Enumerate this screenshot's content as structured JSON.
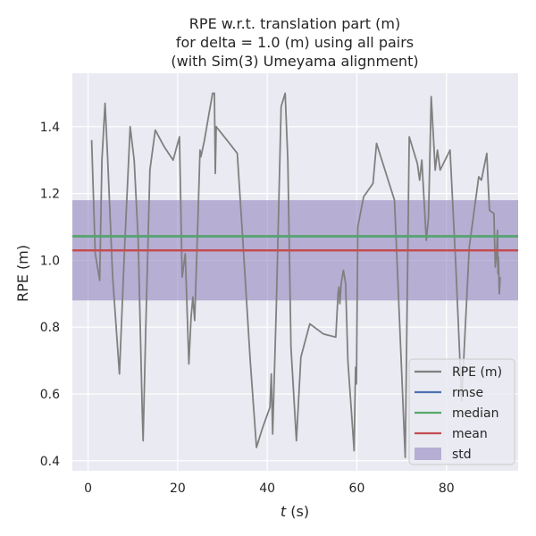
{
  "chart_data": {
    "type": "line",
    "title_lines": [
      "RPE w.r.t. translation part (m)",
      "for delta = 1.0 (m) using all pairs",
      "(with Sim(3) Umeyama alignment)"
    ],
    "xlabel_italic": "t",
    "xlabel_rest": " (s)",
    "ylabel": "RPE (m)",
    "xlim": [
      -3.5,
      96
    ],
    "ylim": [
      0.37,
      1.56
    ],
    "xticks": [
      0,
      20,
      40,
      60,
      80
    ],
    "yticks": [
      0.4,
      0.6,
      0.8,
      1.0,
      1.2,
      1.4
    ],
    "xtick_labels": [
      "0",
      "20",
      "40",
      "60",
      "80"
    ],
    "ytick_labels": [
      "0.4",
      "0.6",
      "0.8",
      "1.0",
      "1.2",
      "1.4"
    ],
    "grid": true,
    "legend_position": "lower-right",
    "series": [
      {
        "name": "RPE (m)",
        "color": "#808080",
        "x": [
          0.8,
          1.6,
          2.1,
          2.6,
          3.1,
          3.8,
          4.4,
          5.5,
          7.0,
          8.1,
          9.4,
          10.3,
          11.2,
          12.1,
          12.3,
          12.9,
          13.8,
          15.0,
          17.0,
          19.0,
          20.4,
          21.0,
          21.7,
          22.5,
          23.0,
          23.4,
          23.8,
          24.5,
          25.0,
          25.2,
          26.0,
          27.0,
          27.8,
          28.2,
          28.4,
          28.6,
          31.0,
          33.3,
          34.5,
          36.2,
          37.6,
          39.0,
          40.6,
          40.9,
          41.2,
          42.0,
          43.1,
          44.0,
          44.6,
          45.3,
          46.5,
          47.5,
          49.5,
          52.5,
          55.3,
          55.8,
          56.0,
          56.2,
          56.5,
          57.0,
          57.5,
          58.0,
          59.4,
          59.7,
          59.9,
          60.2,
          61.5,
          63.6,
          64.4,
          68.4,
          70.8,
          71.7,
          73.5,
          74.0,
          74.5,
          75.5,
          76.0,
          76.6,
          77.5,
          78.0,
          78.6,
          80.8,
          82.1,
          83.4,
          85.1,
          87.2,
          87.8,
          89.0,
          89.6,
          90.6,
          90.9,
          91.2,
          91.4,
          91.5,
          91.6,
          91.8,
          92.0
        ],
        "y": [
          1.36,
          1.02,
          0.98,
          0.94,
          1.3,
          1.47,
          1.3,
          0.95,
          0.66,
          1.02,
          1.4,
          1.3,
          1.06,
          0.55,
          0.46,
          0.8,
          1.27,
          1.39,
          1.34,
          1.3,
          1.37,
          0.95,
          1.02,
          0.69,
          0.83,
          0.89,
          0.82,
          1.11,
          1.33,
          1.31,
          1.36,
          1.44,
          1.5,
          1.5,
          1.26,
          1.4,
          1.36,
          1.32,
          1.07,
          0.7,
          0.44,
          0.5,
          0.56,
          0.66,
          0.48,
          0.85,
          1.46,
          1.5,
          1.3,
          0.74,
          0.46,
          0.71,
          0.81,
          0.78,
          0.77,
          0.9,
          0.92,
          0.87,
          0.93,
          0.97,
          0.93,
          0.7,
          0.43,
          0.68,
          0.63,
          1.1,
          1.19,
          1.23,
          1.35,
          1.18,
          0.41,
          1.37,
          1.29,
          1.24,
          1.3,
          1.06,
          1.13,
          1.49,
          1.27,
          1.33,
          1.27,
          1.33,
          0.98,
          0.58,
          1.04,
          1.25,
          1.24,
          1.32,
          1.15,
          1.14,
          0.98,
          1.02,
          1.09,
          0.96,
          1.01,
          0.9,
          0.95
        ]
      },
      {
        "name": "rmse",
        "color": "#4c72b0",
        "value": 1.072
      },
      {
        "name": "median",
        "color": "#55a868",
        "value": 1.072
      },
      {
        "name": "mean",
        "color": "#c44e52",
        "value": 1.03
      },
      {
        "name": "std",
        "color": "#8172b3",
        "range": [
          0.88,
          1.18
        ]
      }
    ],
    "colors": {
      "plot_background": "#eaeaf2",
      "grid": "#ffffff",
      "rpe_line": "#808080",
      "rmse_line": "#4c72b0",
      "median_line": "#55a868",
      "mean_line": "#c44e52",
      "std_band": "#8172b3"
    }
  }
}
